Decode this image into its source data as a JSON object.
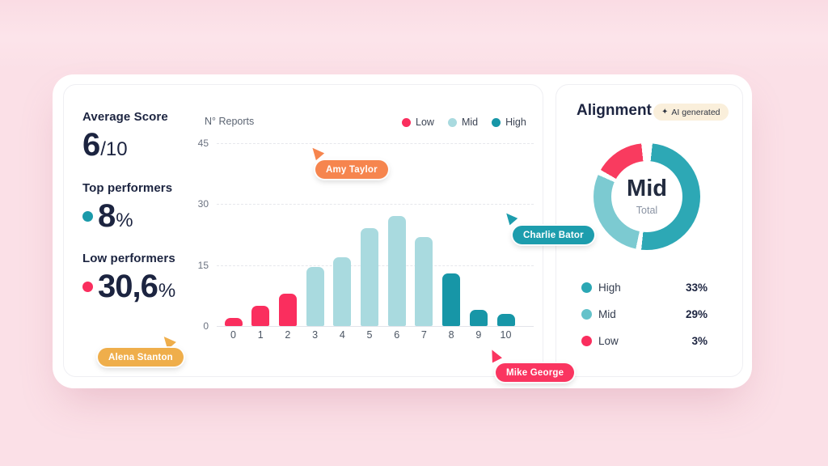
{
  "stats": {
    "average_score": {
      "label": "Average Score",
      "value": "6",
      "suffix": "/10"
    },
    "top_performers": {
      "label": "Top performers",
      "value": "8",
      "suffix": "%",
      "dot_color": "#1b9aaa"
    },
    "low_performers": {
      "label": "Low performers",
      "value": "30,6",
      "suffix": "%",
      "dot_color": "#fa2e5e"
    }
  },
  "cursors": [
    {
      "name": "Amy Taylor",
      "color": "#f6854e"
    },
    {
      "name": "Charlie Bator",
      "color": "#1d9dad"
    },
    {
      "name": "Alena Stanton",
      "color": "#efae4b"
    },
    {
      "name": "Mike George",
      "color": "#fa3560"
    }
  ],
  "alignment": {
    "title": "Alignment",
    "badge": {
      "icon": "✦",
      "label": "AI generated"
    },
    "center_label": "Mid",
    "center_sublabel": "Total",
    "legend": [
      {
        "label": "High",
        "value": "33%",
        "color": "#2ba7b4"
      },
      {
        "label": "Mid",
        "value": "29%",
        "color": "#64c2ca"
      },
      {
        "label": "Low",
        "value": "3%",
        "color": "#fa2e5e"
      }
    ]
  },
  "chart_data": [
    {
      "type": "bar",
      "title": "N° Reports",
      "categories": [
        "0",
        "1",
        "2",
        "3",
        "4",
        "5",
        "6",
        "7",
        "8",
        "9",
        "10"
      ],
      "values": [
        2,
        5,
        8,
        14.5,
        17,
        24,
        27,
        22,
        13,
        4,
        3
      ],
      "color_groups": [
        "Low",
        "Low",
        "Low",
        "Mid",
        "Mid",
        "Mid",
        "Mid",
        "Mid",
        "High",
        "High",
        "High"
      ],
      "group_colors": {
        "Low": "#fa2e5e",
        "Mid": "#a9dadf",
        "High": "#1796a7"
      },
      "legend": [
        "Low",
        "Mid",
        "High"
      ],
      "legend_position": "top-right",
      "xlabel": "",
      "ylabel": "N° Reports",
      "ylim": [
        0,
        45
      ],
      "yticks": [
        0,
        15,
        30,
        45
      ],
      "grid": "dashed-horizontal"
    },
    {
      "type": "pie",
      "subtype": "donut",
      "title": "Alignment",
      "labels": [
        "High",
        "Mid",
        "Low"
      ],
      "values": [
        33,
        29,
        3
      ],
      "center_label": "Mid",
      "center_sublabel": "Total",
      "segment_colors": {
        "High": "#2da8b5",
        "Mid": "#7ccad1",
        "Low": "#f93b5f"
      },
      "visual_angles_deg": {
        "High": [
          6,
          186
        ],
        "Mid": [
          192,
          294
        ],
        "Low": [
          300,
          354
        ]
      }
    }
  ]
}
